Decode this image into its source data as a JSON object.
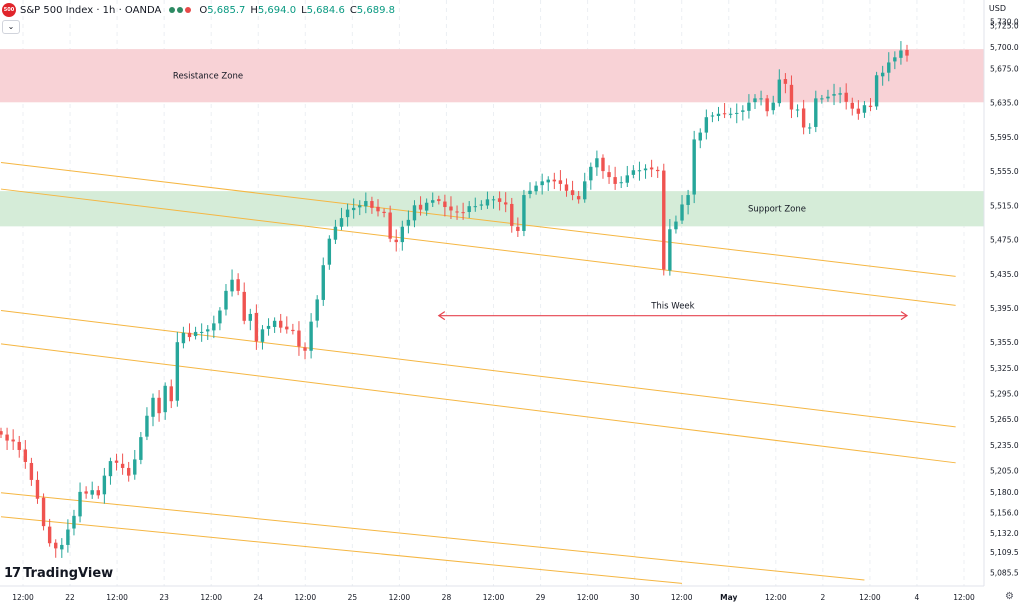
{
  "header": {
    "badge": "500",
    "symbol_title": "S&P 500 Index · 1h · OANDA",
    "ohlc": [
      {
        "label": "O",
        "value": "5,685.7"
      },
      {
        "label": "H",
        "value": "5,694.0"
      },
      {
        "label": "L",
        "value": "5,684.6"
      },
      {
        "label": "C",
        "value": "5,689.8"
      }
    ],
    "currency": "USD"
  },
  "branding": {
    "logo_text": "TradingView"
  },
  "colors": {
    "up": "#26a69a",
    "down": "#ef5350",
    "resistance_fill": "#f8d2d6",
    "support_fill": "#d5ecd8",
    "channel_line": "#f5b642",
    "arrow": "#e64550",
    "grid": "#eceff3"
  },
  "chart_data": {
    "type": "candlestick",
    "ylim": [
      5070,
      5755
    ],
    "y_ticks": [
      "5,085.5",
      "5,109.5",
      "5,132.0",
      "5,156.0",
      "5,180.0",
      "5,205.0",
      "5,235.0",
      "5,265.0",
      "5,295.0",
      "5,325.0",
      "5,355.0",
      "5,395.0",
      "5,435.0",
      "5,475.0",
      "5,515.0",
      "5,555.0",
      "5,595.0",
      "5,635.0",
      "5,675.0",
      "5,700.0",
      "5,725.0",
      "5,730.0"
    ],
    "x_ticks": [
      "12:00",
      "22",
      "12:00",
      "23",
      "12:00",
      "24",
      "12:00",
      "25",
      "12:00",
      "28",
      "12:00",
      "29",
      "12:00",
      "30",
      "12:00",
      "May",
      "12:00",
      "2",
      "12:00",
      "4",
      "12:00"
    ],
    "bold_x_ticks": [
      "May"
    ],
    "zones": [
      {
        "name": "Resistance Zone",
        "low": 5636,
        "high": 5697,
        "color": "#f8d2d6"
      },
      {
        "name": "Support Zone",
        "low": 5491,
        "high": 5531,
        "color": "#d5ecd8"
      }
    ],
    "channel_lines": [
      {
        "from": {
          "bar": 0,
          "price": 5565
        },
        "to": {
          "bar": 157,
          "price": 5432
        }
      },
      {
        "from": {
          "bar": 0,
          "price": 5534
        },
        "to": {
          "bar": 157,
          "price": 5398
        }
      },
      {
        "from": {
          "bar": 0,
          "price": 5392
        },
        "to": {
          "bar": 157,
          "price": 5256
        }
      },
      {
        "from": {
          "bar": 0,
          "price": 5353
        },
        "to": {
          "bar": 157,
          "price": 5214
        }
      },
      {
        "from": {
          "bar": 0,
          "price": 5179
        },
        "to": {
          "bar": 142,
          "price": 5077
        }
      },
      {
        "from": {
          "bar": 0,
          "price": 5151
        },
        "to": {
          "bar": 112,
          "price": 5073
        }
      }
    ],
    "annotation": {
      "text": "This Week",
      "from_bar": 72,
      "to_bar": 149,
      "price": 5386
    },
    "bars": [
      5247,
      5240,
      5239,
      5229,
      5215,
      5194,
      5172,
      5140,
      5120,
      5114,
      5118,
      5136,
      5152,
      5180,
      5178,
      5182,
      5176,
      5199,
      5216,
      5214,
      5208,
      5199,
      5218,
      5244,
      5269,
      5290,
      5272,
      5304,
      5286,
      5355,
      5366,
      5361,
      5367,
      5367,
      5370,
      5377,
      5392,
      5415,
      5428,
      5415,
      5380,
      5388,
      5356,
      5370,
      5374,
      5380,
      5372,
      5370,
      5368,
      5350,
      5345,
      5379,
      5405,
      5445,
      5476,
      5490,
      5500,
      5510,
      5512,
      5515,
      5520,
      5512,
      5508,
      5506,
      5476,
      5472,
      5490,
      5498,
      5515,
      5510,
      5518,
      5521,
      5520,
      5513,
      5509,
      5507,
      5506,
      5514,
      5514,
      5516,
      5522,
      5522,
      5519,
      5516,
      5491,
      5485,
      5527,
      5532,
      5538,
      5543,
      5545,
      5543,
      5540,
      5532,
      5527,
      5522,
      5543,
      5560,
      5570,
      5555,
      5548,
      5540,
      5542,
      5550,
      5556,
      5556,
      5558,
      5557,
      5555,
      5440,
      5487,
      5496,
      5516,
      5527,
      5592,
      5600,
      5618,
      5620,
      5622,
      5622,
      5622,
      5623,
      5626,
      5635,
      5640,
      5640,
      5625,
      5635,
      5662,
      5657,
      5627,
      5627,
      5606,
      5606,
      5640,
      5640,
      5642,
      5645,
      5646,
      5636,
      5628,
      5622,
      5632,
      5630,
      5667,
      5670,
      5682,
      5688,
      5696,
      5690
    ]
  }
}
